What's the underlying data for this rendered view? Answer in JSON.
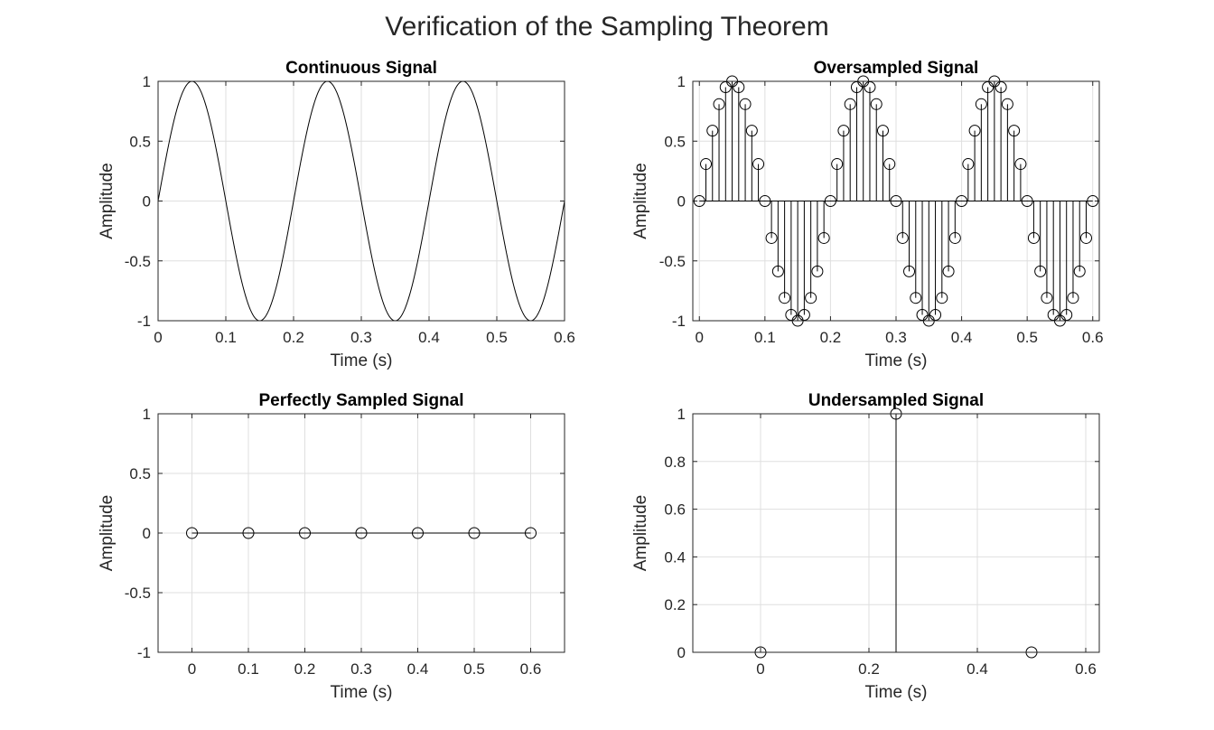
{
  "figure": {
    "title": "Verification of the Sampling Theorem"
  },
  "colors": {
    "line": "#000000",
    "axis": "#262626",
    "grid": "#dfdfdf"
  },
  "chart_data": [
    {
      "type": "line",
      "title": "Continuous Signal",
      "xlabel": "Time (s)",
      "ylabel": "Amplitude",
      "xlim": [
        0,
        0.6
      ],
      "ylim": [
        -1,
        1
      ],
      "xticks": [
        0,
        0.1,
        0.2,
        0.3,
        0.4,
        0.5,
        0.6
      ],
      "yticks": [
        -1,
        -0.5,
        0,
        0.5,
        1
      ],
      "xtick_labels": [
        "0",
        "0.1",
        "0.2",
        "0.3",
        "0.4",
        "0.5",
        "0.6"
      ],
      "ytick_labels": [
        "-1",
        "-0.5",
        "0",
        "0.5",
        "1"
      ],
      "grid": true,
      "signal": {
        "function": "sin",
        "frequency_hz": 5,
        "amplitude": 1,
        "t_start": 0,
        "t_end": 0.6
      }
    },
    {
      "type": "stem",
      "title": "Oversampled Signal",
      "xlabel": "Time (s)",
      "ylabel": "Amplitude",
      "xlim": [
        -0.01,
        0.61
      ],
      "ylim": [
        -1,
        1
      ],
      "xticks": [
        0,
        0.1,
        0.2,
        0.3,
        0.4,
        0.5,
        0.6
      ],
      "yticks": [
        -1,
        -0.5,
        0,
        0.5,
        1
      ],
      "xtick_labels": [
        "0",
        "0.1",
        "0.2",
        "0.3",
        "0.4",
        "0.5",
        "0.6"
      ],
      "ytick_labels": [
        "-1",
        "-0.5",
        "0",
        "0.5",
        "1"
      ],
      "grid": true,
      "signal": {
        "function": "sin",
        "frequency_hz": 5,
        "amplitude": 1,
        "t_start": 0,
        "t_end": 0.6,
        "sample_interval_s": 0.01
      }
    },
    {
      "type": "stem",
      "title": "Perfectly Sampled Signal",
      "xlabel": "Time (s)",
      "ylabel": "Amplitude",
      "xlim": [
        -0.06,
        0.66
      ],
      "ylim": [
        -1,
        1
      ],
      "xticks": [
        0,
        0.1,
        0.2,
        0.3,
        0.4,
        0.5,
        0.6
      ],
      "yticks": [
        -1,
        -0.5,
        0,
        0.5,
        1
      ],
      "xtick_labels": [
        "0",
        "0.1",
        "0.2",
        "0.3",
        "0.4",
        "0.5",
        "0.6"
      ],
      "ytick_labels": [
        "-1",
        "-0.5",
        "0",
        "0.5",
        "1"
      ],
      "grid": true,
      "x": [
        0,
        0.1,
        0.2,
        0.3,
        0.4,
        0.5,
        0.6
      ],
      "y": [
        0,
        0,
        0,
        0,
        0,
        0,
        0
      ]
    },
    {
      "type": "stem",
      "title": "Undersampled Signal",
      "xlabel": "Time (s)",
      "ylabel": "Amplitude",
      "xlim": [
        -0.125,
        0.625
      ],
      "ylim": [
        0,
        1
      ],
      "xticks": [
        0,
        0.2,
        0.4,
        0.6
      ],
      "yticks": [
        0,
        0.2,
        0.4,
        0.6,
        0.8,
        1
      ],
      "xtick_labels": [
        "0",
        "0.2",
        "0.4",
        "0.6"
      ],
      "ytick_labels": [
        "0",
        "0.2",
        "0.4",
        "0.6",
        "0.8",
        "1"
      ],
      "grid": true,
      "x": [
        0,
        0.25,
        0.5
      ],
      "y": [
        0,
        1,
        0
      ]
    }
  ]
}
